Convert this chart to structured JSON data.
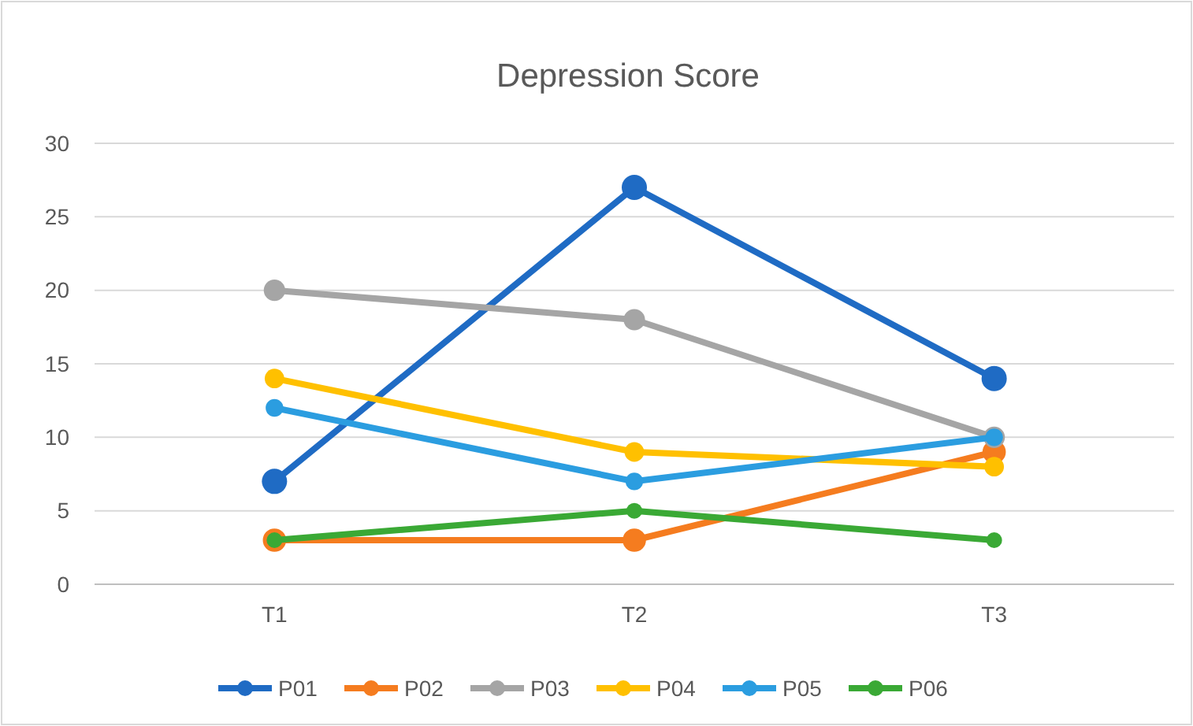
{
  "chart_data": {
    "type": "line",
    "title": "Depression Score",
    "categories": [
      "T1",
      "T2",
      "T3"
    ],
    "series": [
      {
        "name": "P01",
        "color": "#1f6bc4",
        "values": [
          7,
          27,
          14
        ]
      },
      {
        "name": "P02",
        "color": "#f57c1f",
        "values": [
          3,
          3,
          9
        ]
      },
      {
        "name": "P03",
        "color": "#a5a5a5",
        "values": [
          20,
          18,
          10
        ]
      },
      {
        "name": "P04",
        "color": "#ffc000",
        "values": [
          14,
          9,
          8
        ]
      },
      {
        "name": "P05",
        "color": "#2b9de0",
        "values": [
          12,
          7,
          10
        ]
      },
      {
        "name": "P06",
        "color": "#3aa935",
        "values": [
          3,
          5,
          3
        ]
      }
    ],
    "ylim": [
      0,
      30
    ],
    "yticks": [
      0,
      5,
      10,
      15,
      20,
      25,
      30
    ],
    "grid": "y",
    "legend": "bottom",
    "marker": "circle",
    "line_style": "solid"
  }
}
